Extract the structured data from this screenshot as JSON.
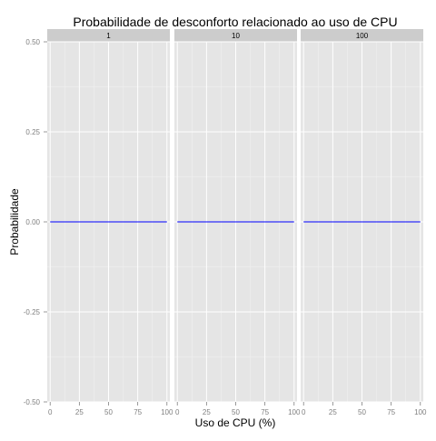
{
  "chart_data": {
    "type": "line",
    "title": "Probabilidade de desconforto relacionado ao uso de CPU",
    "xlabel": "Uso de CPU (%)",
    "ylabel": "Probabilidade",
    "xlim": [
      -2.5,
      102.5
    ],
    "ylim": [
      -0.5,
      0.5
    ],
    "x_ticks": [
      0,
      25,
      50,
      75,
      100
    ],
    "x_tick_labels": [
      "0",
      "25",
      "50",
      "75",
      "100"
    ],
    "y_ticks": [
      0.5,
      0.25,
      0.0,
      -0.25,
      -0.5
    ],
    "y_tick_labels": [
      "0.50",
      "0.25",
      "0.00",
      "-0.25",
      "-0.50"
    ],
    "grid": true,
    "facets": [
      {
        "label": "1",
        "x": [
          0,
          100
        ],
        "y": [
          0,
          0
        ]
      },
      {
        "label": "10",
        "x": [
          0,
          100
        ],
        "y": [
          0,
          0
        ]
      },
      {
        "label": "100",
        "x": [
          0,
          100
        ],
        "y": [
          0,
          0
        ]
      }
    ],
    "colors": {
      "line": "#0000ff",
      "panel_bg": "#e5e5e5",
      "strip_bg": "#cccccc",
      "grid_major": "#ffffff",
      "grid_minor": "#f2f2f2",
      "tick_text": "#7f7f7f",
      "text": "#000000"
    }
  }
}
